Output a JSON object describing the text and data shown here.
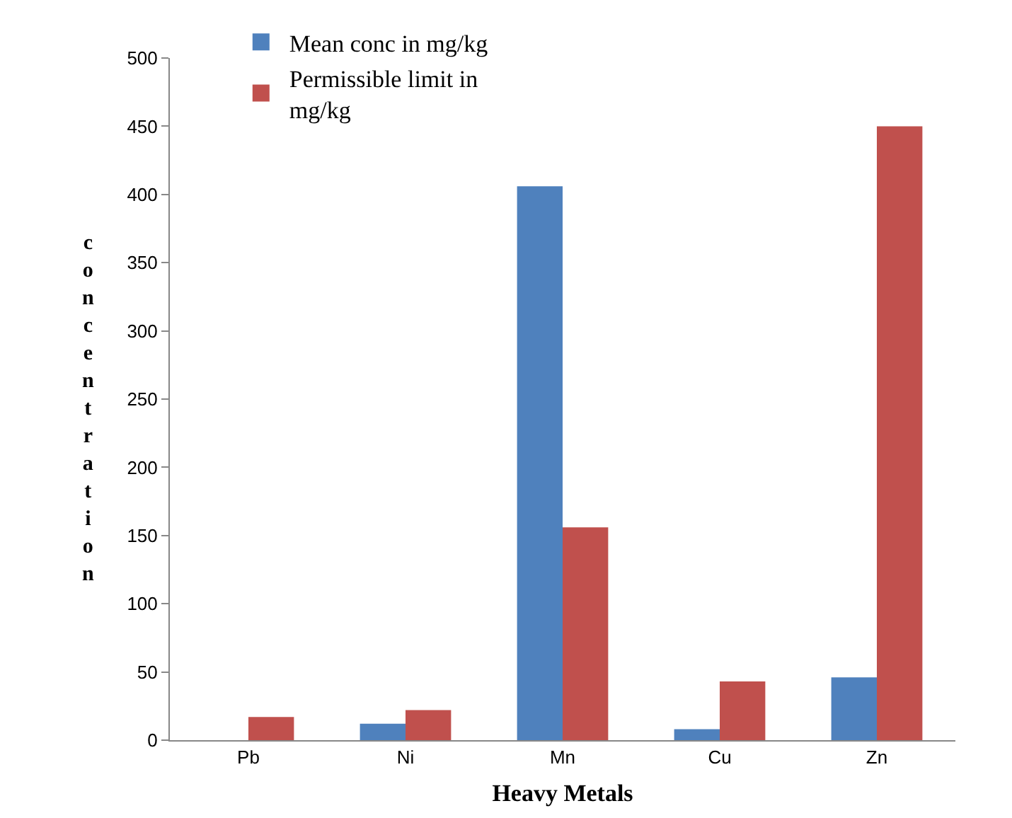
{
  "chart_data": {
    "type": "bar",
    "xlabel": "Heavy Metals",
    "ylabel": "concentration",
    "categories": [
      "Pb",
      "Ni",
      "Mn",
      "Cu",
      "Zn"
    ],
    "series": [
      {
        "name": "Mean conc in mg/kg",
        "color": "#4f81bd",
        "values": [
          null,
          12,
          406,
          8,
          46
        ]
      },
      {
        "name": "Permissible limit in mg/kg",
        "color": "#c0504d",
        "values": [
          17,
          22,
          156,
          43,
          450
        ]
      }
    ],
    "ylim": [
      0,
      500
    ],
    "yticks": [
      0,
      50,
      100,
      150,
      200,
      250,
      300,
      350,
      400,
      450,
      500
    ],
    "legend": "top left"
  }
}
